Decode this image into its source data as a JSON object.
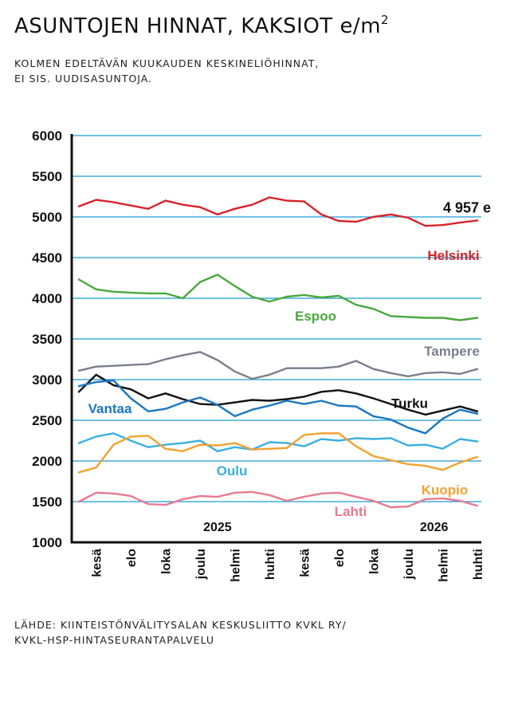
{
  "header": {
    "title": "ASUNTOJEN HINNAT, KAKSIOT",
    "title_unit": "e/m",
    "title_unit_sup": "2",
    "subtitle_line1": "KOLMEN EDELTÄVÄN KUUKAUDEN KESKINELIÖHINNAT,",
    "subtitle_line2": "EI SIS. UUDISASUNTOJA."
  },
  "footer": {
    "source_line1": "LÄHDE: KIINTEISTÖNVÄLITYSALAN KESKUSLIITTO KVKL RY/",
    "source_line2": "KVKL-HSP-HINTASEURANTAPALVELU"
  },
  "chart_data": {
    "type": "line",
    "ylim": [
      1000,
      6000
    ],
    "yticks": [
      "6000",
      "5500",
      "5000",
      "4500",
      "4000",
      "3500",
      "3000",
      "2500",
      "2000",
      "1500",
      "1000"
    ],
    "x_tick_labels": [
      "kesä",
      "elo",
      "loka",
      "joulu",
      "helmi",
      "huhti",
      "kesä",
      "elo",
      "loka",
      "joulu",
      "helmi",
      "huhti"
    ],
    "year_labels": [
      {
        "text": "2025",
        "at_index": 8
      },
      {
        "text": "2026",
        "at_index": 20.5
      }
    ],
    "grid": true,
    "colors": {
      "grid": "#1a9ad6",
      "axis": "#111111",
      "Helsinki": "#d8232a",
      "Espoo": "#4aa83f",
      "Tampere": "#7a7f8e",
      "Turku": "#111111",
      "Vantaa": "#1a76c1",
      "Oulu": "#3aafe0",
      "Kuopio": "#f2a22f",
      "Lahti": "#e77a90"
    },
    "series": [
      {
        "name": "Helsinki",
        "values": [
          5130,
          5210,
          5180,
          5140,
          5100,
          5200,
          5150,
          5120,
          5030,
          5100,
          5150,
          5240,
          5200,
          5190,
          5030,
          4950,
          4940,
          5000,
          5030,
          4990,
          4890,
          4900,
          4930,
          4957
        ],
        "value_label": "4 957 e"
      },
      {
        "name": "Espoo",
        "values": [
          4230,
          4110,
          4080,
          4070,
          4060,
          4060,
          4000,
          4200,
          4290,
          4150,
          4020,
          3960,
          4020,
          4040,
          4010,
          4030,
          3920,
          3870,
          3780,
          3770,
          3760,
          3760,
          3730,
          3760
        ]
      },
      {
        "name": "Tampere",
        "values": [
          3110,
          3160,
          3170,
          3180,
          3190,
          3250,
          3300,
          3340,
          3240,
          3100,
          3010,
          3060,
          3140,
          3140,
          3140,
          3160,
          3230,
          3130,
          3080,
          3040,
          3080,
          3090,
          3070,
          3130
        ]
      },
      {
        "name": "Turku",
        "values": [
          2850,
          3060,
          2930,
          2880,
          2770,
          2830,
          2760,
          2700,
          2690,
          2720,
          2750,
          2740,
          2760,
          2790,
          2850,
          2870,
          2830,
          2770,
          2700,
          2630,
          2570,
          2620,
          2670,
          2610
        ]
      },
      {
        "name": "Vantaa",
        "values": [
          2920,
          2970,
          2990,
          2770,
          2610,
          2640,
          2720,
          2780,
          2690,
          2550,
          2630,
          2680,
          2740,
          2700,
          2740,
          2680,
          2670,
          2550,
          2510,
          2410,
          2340,
          2520,
          2630,
          2580
        ]
      },
      {
        "name": "Oulu",
        "values": [
          2220,
          2300,
          2340,
          2250,
          2170,
          2200,
          2220,
          2250,
          2120,
          2170,
          2140,
          2230,
          2220,
          2180,
          2270,
          2250,
          2280,
          2270,
          2280,
          2190,
          2200,
          2150,
          2270,
          2240
        ]
      },
      {
        "name": "Kuopio",
        "values": [
          1860,
          1920,
          2200,
          2300,
          2310,
          2150,
          2120,
          2200,
          2190,
          2220,
          2140,
          2150,
          2160,
          2320,
          2340,
          2340,
          2180,
          2060,
          2010,
          1960,
          1940,
          1890,
          1980,
          2050
        ]
      },
      {
        "name": "Lahti",
        "values": [
          1500,
          1610,
          1600,
          1570,
          1470,
          1460,
          1530,
          1570,
          1560,
          1610,
          1620,
          1580,
          1510,
          1560,
          1600,
          1610,
          1560,
          1510,
          1430,
          1440,
          1530,
          1540,
          1510,
          1450
        ]
      }
    ]
  }
}
